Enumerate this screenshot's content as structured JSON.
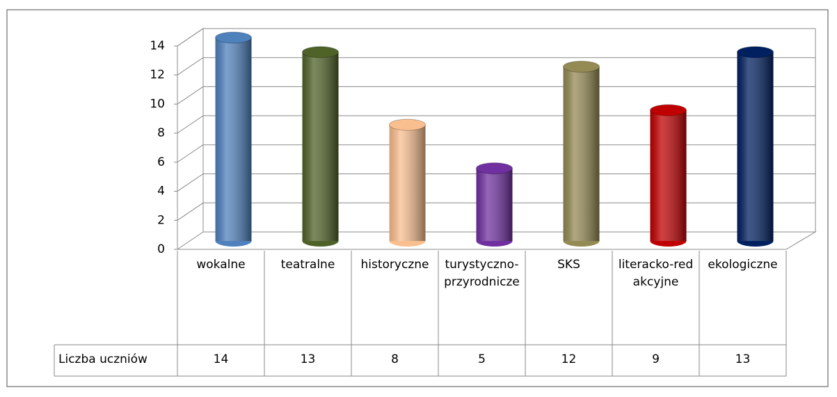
{
  "chart_data": {
    "type": "bar",
    "categories": [
      "wokalne",
      "teatralne",
      "historyczne",
      "turystyczno-przyrodnicze",
      "SKS",
      "literacko-redakcyjne",
      "ekologiczne"
    ],
    "series": [
      {
        "name": "Liczba uczniów",
        "values": [
          14,
          13,
          8,
          5,
          12,
          9,
          13
        ],
        "colors": [
          "#4f81bd",
          "#4f6228",
          "#fabf8f",
          "#7030a0",
          "#948a54",
          "#c00000",
          "#002060"
        ]
      }
    ],
    "ylim": [
      0,
      14
    ],
    "yticks": [
      0,
      2,
      4,
      6,
      8,
      10,
      12,
      14
    ],
    "grid": true,
    "data_table": true
  }
}
